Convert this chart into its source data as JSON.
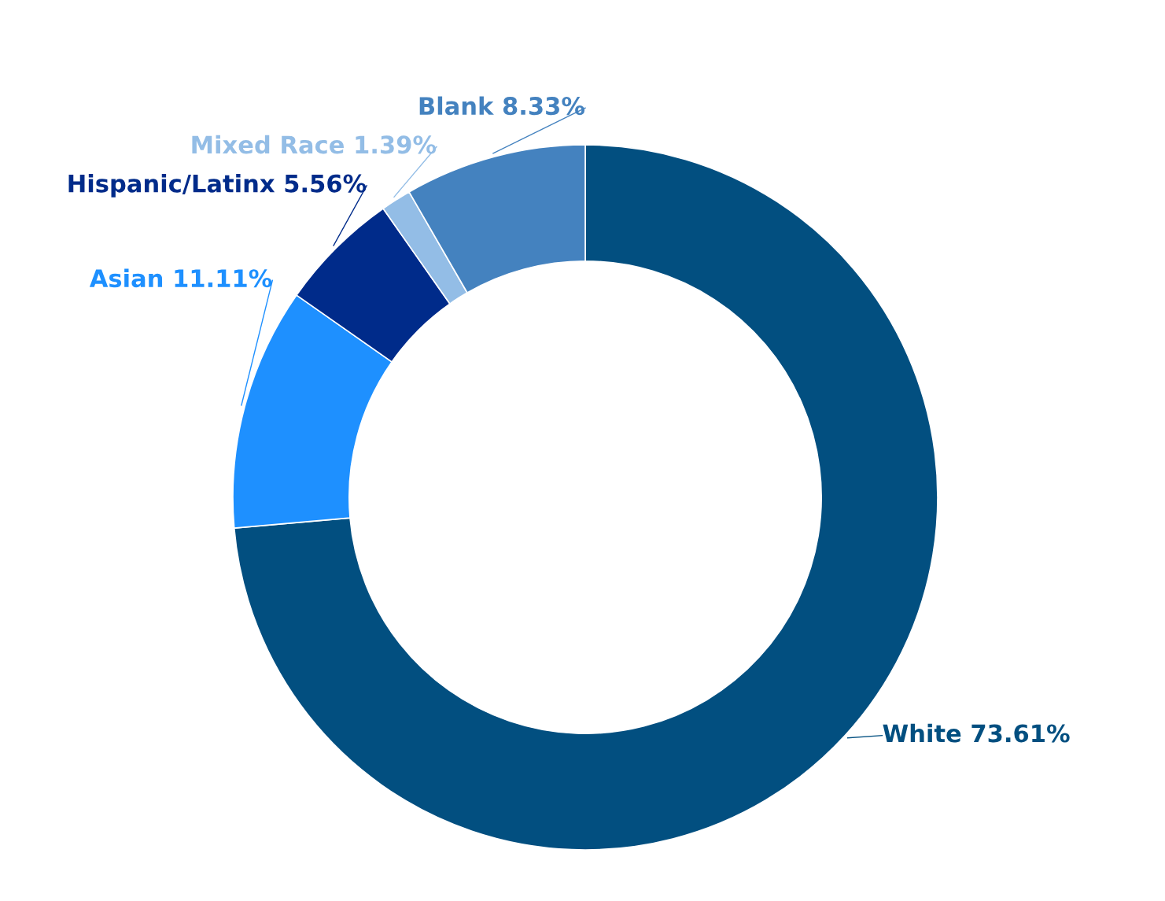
{
  "chart_data": {
    "type": "donut",
    "categories": [
      "White",
      "Asian",
      "Hispanic/Latinx",
      "Mixed Race",
      "Blank"
    ],
    "values": [
      73.61,
      11.11,
      5.56,
      1.39,
      8.33
    ],
    "value_labels": [
      "73.61%",
      "11.11%",
      "5.56%",
      "1.39%",
      "8.33%"
    ],
    "colors": [
      "#024f80",
      "#1e90ff",
      "#002b8a",
      "#93bde6",
      "#4482bf"
    ],
    "legend": false
  }
}
